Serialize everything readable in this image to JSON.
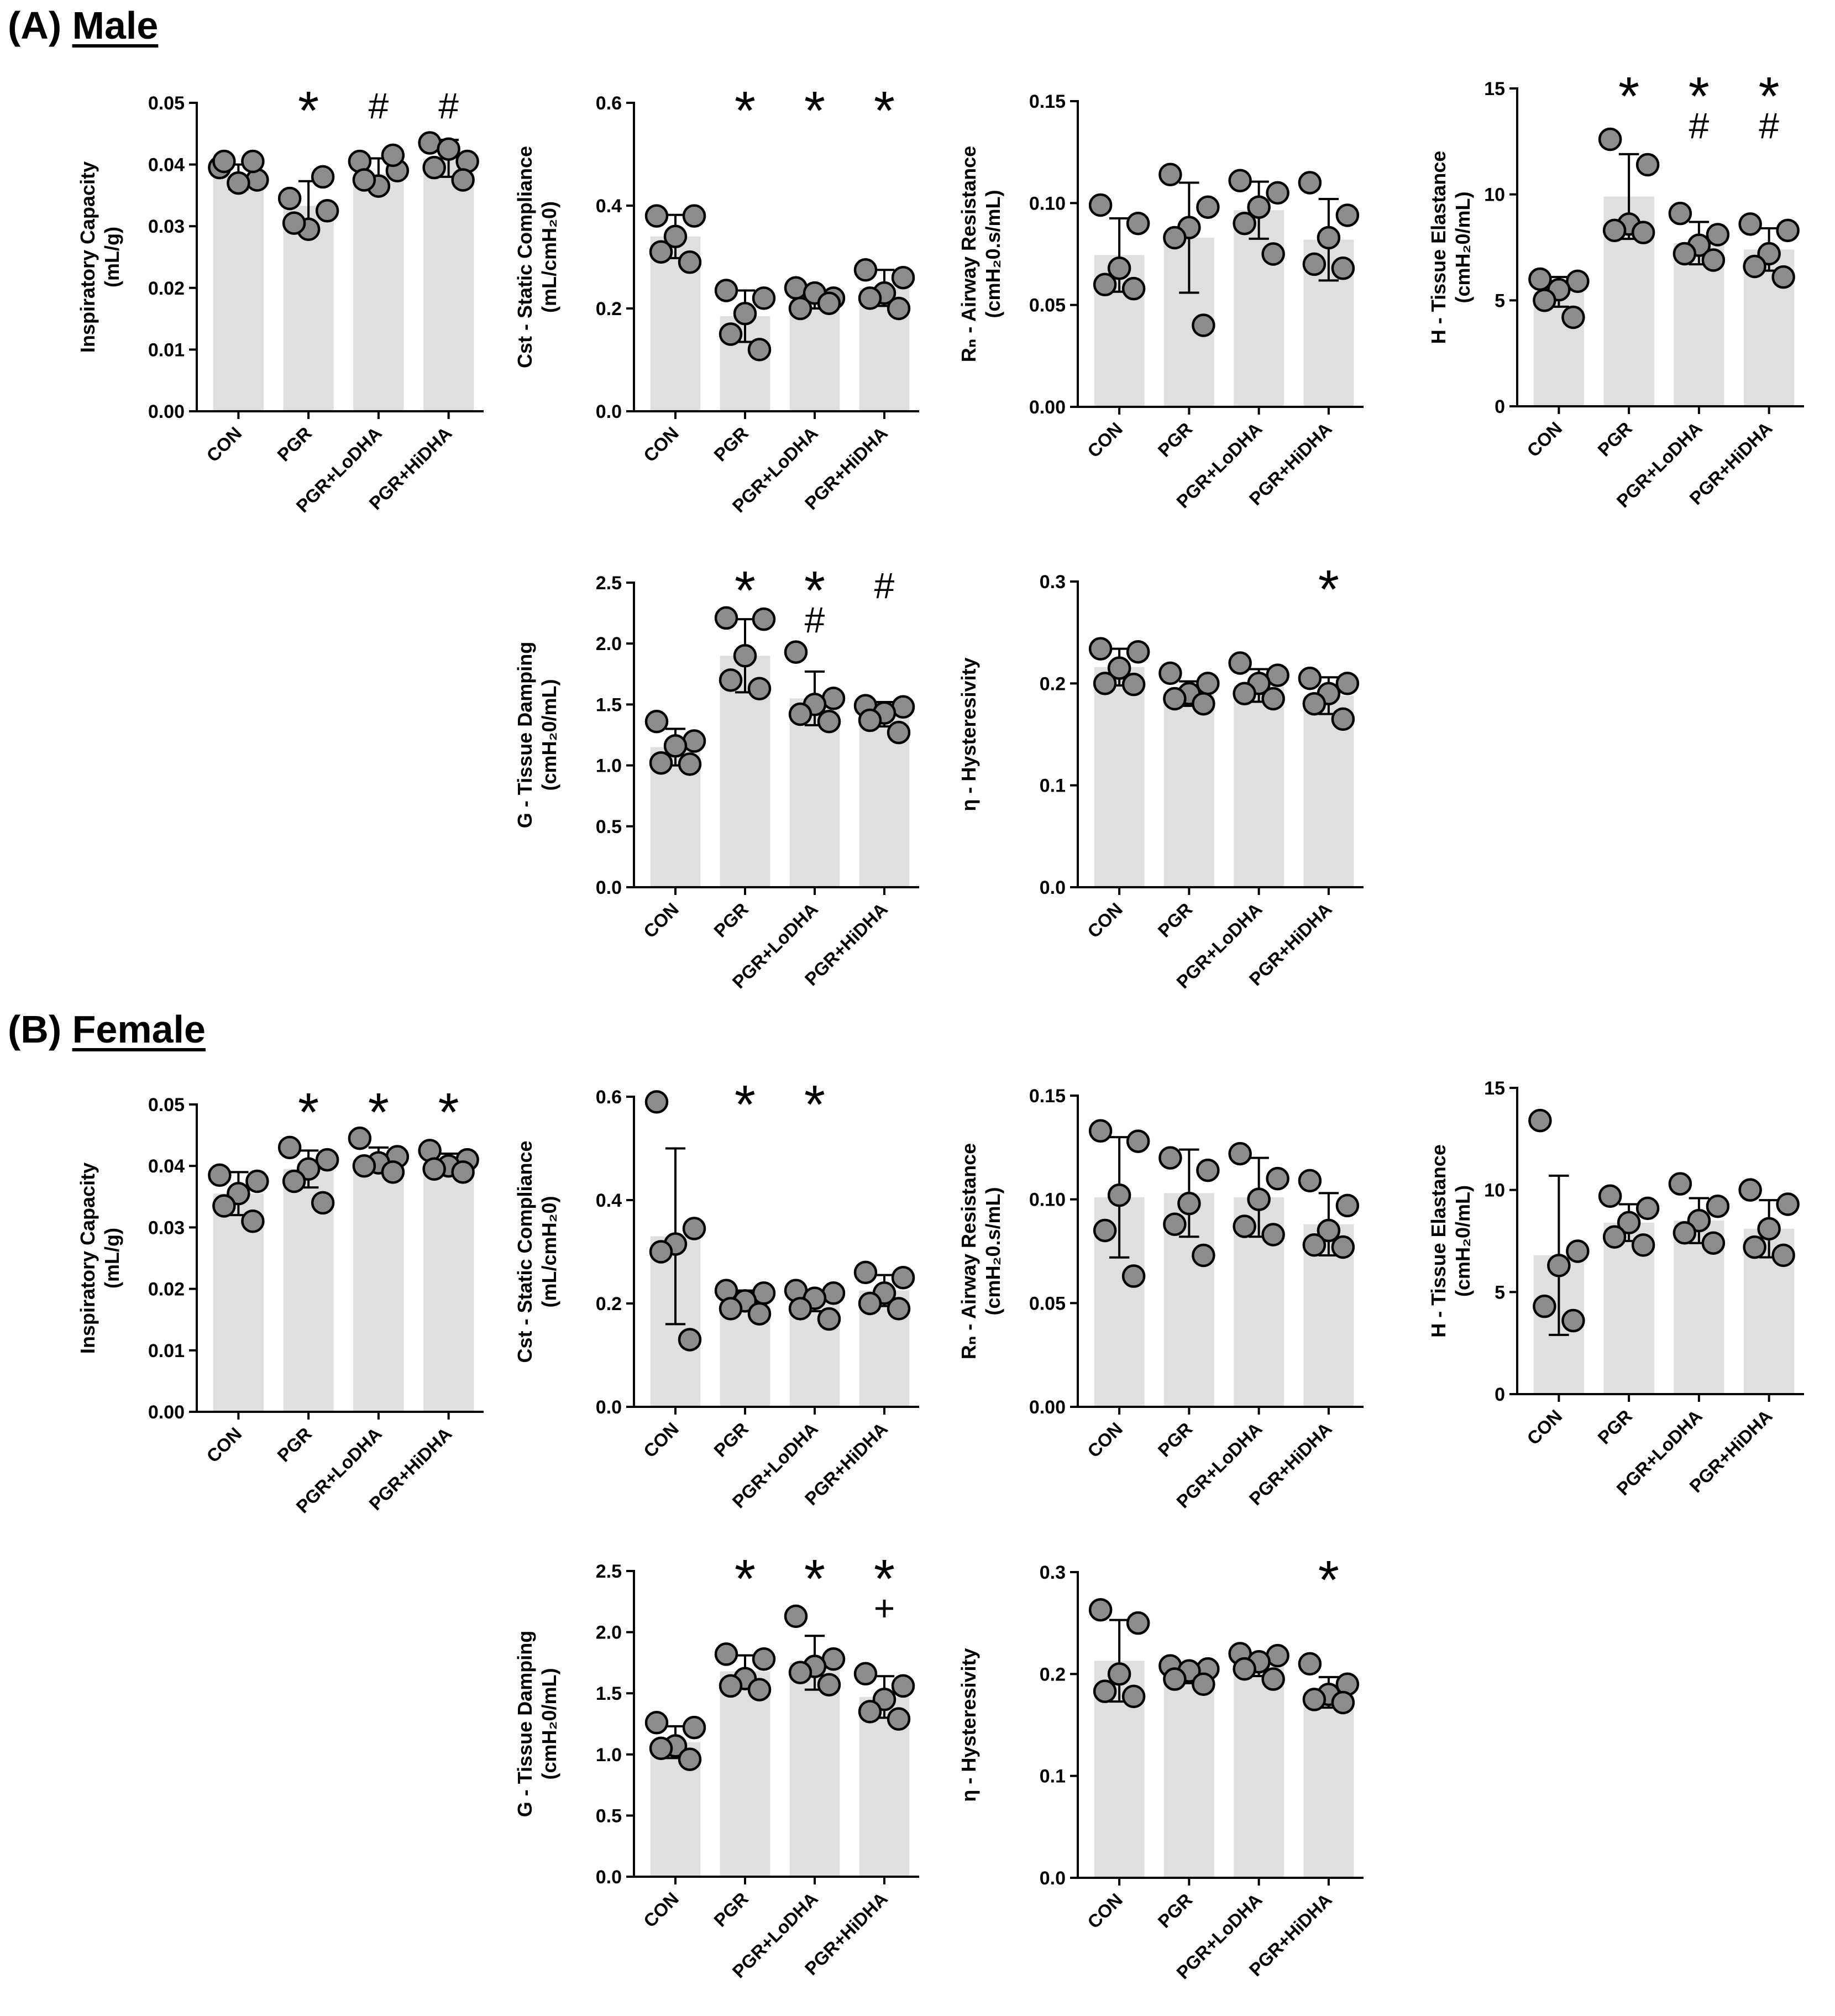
{
  "sections": [
    {
      "label": "(A)",
      "name": "Male"
    },
    {
      "label": "(B)",
      "name": "Female"
    }
  ],
  "chart_data": [
    {
      "id": "male-ic",
      "section": "Male",
      "type": "bar",
      "title": "",
      "ylabel_main": "Inspiratory Capacity",
      "ylabel_sub": "(mL/g)",
      "ylim": [
        0,
        0.05
      ],
      "ticks": [
        "0.00",
        "0.01",
        "0.02",
        "0.03",
        "0.04",
        "0.05"
      ],
      "categories": [
        "CON",
        "PGR",
        "PGR+LoDHA",
        "PGR+HiDHA"
      ],
      "values": [
        0.038,
        0.0333,
        0.0385,
        0.041
      ],
      "sd": [
        0.002,
        0.004,
        0.0025,
        0.003
      ],
      "points": [
        [
          0.0395,
          0.0375,
          0.037,
          0.0405,
          0.0405
        ],
        [
          0.0345,
          0.0325,
          0.0295,
          0.0305,
          0.038
        ],
        [
          0.0405,
          0.039,
          0.0365,
          0.0375,
          0.0415
        ],
        [
          0.0435,
          0.0405,
          0.0425,
          0.0395,
          0.0375
        ]
      ],
      "sig": [
        [],
        [
          "*"
        ],
        [
          "#"
        ],
        [
          "#"
        ]
      ]
    },
    {
      "id": "male-cst",
      "section": "Male",
      "type": "bar",
      "title": "",
      "ylabel_main": "Cst - Static Compliance",
      "ylabel_sub": "(mL/cmH₂0)",
      "ylim": [
        0,
        0.6
      ],
      "ticks": [
        "0.0",
        "0.2",
        "0.4",
        "0.6"
      ],
      "categories": [
        "CON",
        "PGR",
        "PGR+LoDHA",
        "PGR+HiDHA"
      ],
      "values": [
        0.34,
        0.185,
        0.22,
        0.24
      ],
      "sd": [
        0.042,
        0.05,
        0.02,
        0.035
      ],
      "points": [
        [
          0.38,
          0.38,
          0.34,
          0.31,
          0.29
        ],
        [
          0.235,
          0.22,
          0.19,
          0.15,
          0.12
        ],
        [
          0.24,
          0.22,
          0.23,
          0.2,
          0.21
        ],
        [
          0.275,
          0.26,
          0.23,
          0.22,
          0.2
        ]
      ],
      "sig": [
        [],
        [
          "*"
        ],
        [
          "*"
        ],
        [
          "*"
        ]
      ]
    },
    {
      "id": "male-rn",
      "section": "Male",
      "type": "bar",
      "title": "",
      "ylabel_main": "Rₙ - Airway Resistance",
      "ylabel_sub": "(cmH₂0.s/mL)",
      "ylim": [
        0,
        0.15
      ],
      "ticks": [
        "0.00",
        "0.05",
        "0.10",
        "0.15"
      ],
      "categories": [
        "CON",
        "PGR",
        "PGR+LoDHA",
        "PGR+HiDHA"
      ],
      "values": [
        0.0745,
        0.083,
        0.0965,
        0.082
      ],
      "sd": [
        0.018,
        0.027,
        0.014,
        0.02
      ],
      "points": [
        [
          0.099,
          0.09,
          0.068,
          0.06,
          0.058
        ],
        [
          0.114,
          0.098,
          0.088,
          0.083,
          0.04
        ],
        [
          0.111,
          0.105,
          0.098,
          0.09,
          0.075
        ],
        [
          0.11,
          0.094,
          0.083,
          0.07,
          0.068
        ]
      ],
      "sig": [
        [],
        [],
        [],
        []
      ]
    },
    {
      "id": "male-h",
      "section": "Male",
      "type": "bar",
      "title": "",
      "ylabel_main": "H - Tissue Elastance",
      "ylabel_sub": "(cmH₂0/mL)",
      "ylim": [
        0,
        15
      ],
      "ticks": [
        "0",
        "5",
        "10",
        "15"
      ],
      "categories": [
        "CON",
        "PGR",
        "PGR+LoDHA",
        "PGR+HiDHA"
      ],
      "values": [
        5.4,
        9.9,
        7.7,
        7.4
      ],
      "sd": [
        0.7,
        2.0,
        1.0,
        1.0
      ],
      "points": [
        [
          6.0,
          5.9,
          5.5,
          5.0,
          4.2
        ],
        [
          12.6,
          11.4,
          8.6,
          8.3,
          8.2
        ],
        [
          9.1,
          8.1,
          7.6,
          7.2,
          6.9
        ],
        [
          8.6,
          8.3,
          7.2,
          6.6,
          6.1
        ]
      ],
      "sig": [
        [],
        [
          "*"
        ],
        [
          "*",
          "#"
        ],
        [
          "*",
          "#"
        ]
      ]
    },
    {
      "id": "male-g",
      "section": "Male",
      "type": "bar",
      "title": "",
      "ylabel_main": "G - Tissue Damping",
      "ylabel_sub": "(cmH₂0/mL)",
      "ylim": [
        0,
        2.5
      ],
      "ticks": [
        "0.0",
        "0.5",
        "1.0",
        "1.5",
        "2.0",
        "2.5"
      ],
      "categories": [
        "CON",
        "PGR",
        "PGR+LoDHA",
        "PGR+HiDHA"
      ],
      "values": [
        1.15,
        1.9,
        1.55,
        1.42
      ],
      "sd": [
        0.15,
        0.3,
        0.22,
        0.1
      ],
      "points": [
        [
          1.36,
          1.2,
          1.16,
          1.02,
          1.01
        ],
        [
          2.21,
          2.2,
          1.9,
          1.7,
          1.63
        ],
        [
          1.93,
          1.55,
          1.5,
          1.42,
          1.36
        ],
        [
          1.49,
          1.48,
          1.43,
          1.37,
          1.27
        ]
      ],
      "sig": [
        [],
        [
          "*"
        ],
        [
          "*",
          "#"
        ],
        [
          "#"
        ]
      ]
    },
    {
      "id": "male-eta",
      "section": "Male",
      "type": "bar",
      "title": "",
      "ylabel_main": "η - Hysteresivity",
      "ylabel_sub": "",
      "ylim": [
        0,
        0.3
      ],
      "ticks": [
        "0.0",
        "0.1",
        "0.2",
        "0.3"
      ],
      "categories": [
        "CON",
        "PGR",
        "PGR+LoDHA",
        "PGR+HiDHA"
      ],
      "values": [
        0.216,
        0.19,
        0.198,
        0.188
      ],
      "sd": [
        0.018,
        0.012,
        0.016,
        0.018
      ],
      "points": [
        [
          0.234,
          0.231,
          0.215,
          0.2,
          0.199
        ],
        [
          0.21,
          0.2,
          0.19,
          0.185,
          0.18
        ],
        [
          0.22,
          0.208,
          0.2,
          0.19,
          0.185
        ],
        [
          0.205,
          0.2,
          0.19,
          0.18,
          0.165
        ]
      ],
      "sig": [
        [],
        [],
        [],
        [
          "*"
        ]
      ]
    },
    {
      "id": "female-ic",
      "section": "Female",
      "type": "bar",
      "title": "",
      "ylabel_main": "Inspiratory Capacity",
      "ylabel_sub": "(mL/g)",
      "ylim": [
        0,
        0.05
      ],
      "ticks": [
        "0.00",
        "0.01",
        "0.02",
        "0.03",
        "0.04",
        "0.05"
      ],
      "categories": [
        "CON",
        "PGR",
        "PGR+LoDHA",
        "PGR+HiDHA"
      ],
      "values": [
        0.0355,
        0.0395,
        0.041,
        0.0405
      ],
      "sd": [
        0.0035,
        0.003,
        0.002,
        0.0015
      ],
      "points": [
        [
          0.0385,
          0.0375,
          0.0355,
          0.0335,
          0.031
        ],
        [
          0.043,
          0.041,
          0.0395,
          0.0375,
          0.034
        ],
        [
          0.0445,
          0.0415,
          0.0405,
          0.04,
          0.039
        ],
        [
          0.0425,
          0.041,
          0.04,
          0.0395,
          0.039
        ]
      ],
      "sig": [
        [],
        [
          "*"
        ],
        [
          "*"
        ],
        [
          "*"
        ]
      ]
    },
    {
      "id": "female-cst",
      "section": "Female",
      "type": "bar",
      "title": "",
      "ylabel_main": "Cst - Static Compliance",
      "ylabel_sub": "(mL/cmH₂0)",
      "ylim": [
        0,
        0.6
      ],
      "ticks": [
        "0.0",
        "0.2",
        "0.4",
        "0.6"
      ],
      "categories": [
        "CON",
        "PGR",
        "PGR+LoDHA",
        "PGR+HiDHA"
      ],
      "values": [
        0.33,
        0.205,
        0.205,
        0.225
      ],
      "sd": [
        0.17,
        0.02,
        0.02,
        0.03
      ],
      "points": [
        [
          0.59,
          0.345,
          0.315,
          0.3,
          0.13
        ],
        [
          0.225,
          0.22,
          0.205,
          0.19,
          0.18
        ],
        [
          0.225,
          0.22,
          0.21,
          0.19,
          0.17
        ],
        [
          0.26,
          0.25,
          0.22,
          0.2,
          0.19
        ]
      ],
      "sig": [
        [],
        [
          "*"
        ],
        [
          "*"
        ],
        []
      ]
    },
    {
      "id": "female-rn",
      "section": "Female",
      "type": "bar",
      "title": "",
      "ylabel_main": "Rₙ - Airway Resistance",
      "ylabel_sub": "(cmH₂0.s/mL)",
      "ylim": [
        0,
        0.15
      ],
      "ticks": [
        "0.00",
        "0.05",
        "0.10",
        "0.15"
      ],
      "categories": [
        "CON",
        "PGR",
        "PGR+LoDHA",
        "PGR+HiDHA"
      ],
      "values": [
        0.101,
        0.103,
        0.101,
        0.088
      ],
      "sd": [
        0.029,
        0.021,
        0.019,
        0.015
      ],
      "points": [
        [
          0.133,
          0.128,
          0.102,
          0.085,
          0.063
        ],
        [
          0.12,
          0.114,
          0.098,
          0.088,
          0.073
        ],
        [
          0.122,
          0.11,
          0.1,
          0.087,
          0.083
        ],
        [
          0.109,
          0.097,
          0.085,
          0.078,
          0.077
        ]
      ],
      "sig": [
        [],
        [],
        [],
        []
      ]
    },
    {
      "id": "female-h",
      "section": "Female",
      "type": "bar",
      "title": "",
      "ylabel_main": "H - Tissue Elastance",
      "ylabel_sub": "(cmH₂0/mL)",
      "ylim": [
        0,
        15
      ],
      "ticks": [
        "0",
        "5",
        "10",
        "15"
      ],
      "categories": [
        "CON",
        "PGR",
        "PGR+LoDHA",
        "PGR+HiDHA"
      ],
      "values": [
        6.8,
        8.4,
        8.5,
        8.1
      ],
      "sd": [
        3.9,
        0.9,
        1.1,
        1.4
      ],
      "points": [
        [
          13.4,
          7.0,
          6.3,
          4.3,
          3.6
        ],
        [
          9.7,
          9.1,
          8.4,
          7.7,
          7.3
        ],
        [
          10.3,
          9.2,
          8.5,
          7.9,
          7.4
        ],
        [
          10.0,
          9.3,
          8.1,
          7.2,
          6.8
        ]
      ],
      "sig": [
        [],
        [],
        [],
        []
      ]
    },
    {
      "id": "female-g",
      "section": "Female",
      "type": "bar",
      "title": "",
      "ylabel_main": "G - Tissue Damping",
      "ylabel_sub": "(cmH₂0/mL)",
      "ylim": [
        0,
        2.5
      ],
      "ticks": [
        "0.0",
        "0.5",
        "1.0",
        "1.5",
        "2.0",
        "2.5"
      ],
      "categories": [
        "CON",
        "PGR",
        "PGR+LoDHA",
        "PGR+HiDHA"
      ],
      "values": [
        1.1,
        1.68,
        1.75,
        1.47
      ],
      "sd": [
        0.13,
        0.13,
        0.22,
        0.17
      ],
      "points": [
        [
          1.26,
          1.22,
          1.07,
          1.05,
          0.96
        ],
        [
          1.82,
          1.78,
          1.62,
          1.56,
          1.53
        ],
        [
          2.13,
          1.78,
          1.72,
          1.67,
          1.57
        ],
        [
          1.66,
          1.56,
          1.45,
          1.35,
          1.29
        ]
      ],
      "sig": [
        [],
        [
          "*"
        ],
        [
          "*"
        ],
        [
          "*",
          "+"
        ]
      ]
    },
    {
      "id": "female-eta",
      "section": "Female",
      "type": "bar",
      "title": "",
      "ylabel_main": "η - Hysteresivity",
      "ylabel_sub": "",
      "ylim": [
        0,
        0.3
      ],
      "ticks": [
        "0.0",
        "0.1",
        "0.2",
        "0.3"
      ],
      "categories": [
        "CON",
        "PGR",
        "PGR+LoDHA",
        "PGR+HiDHA"
      ],
      "values": [
        0.213,
        0.199,
        0.208,
        0.182
      ],
      "sd": [
        0.04,
        0.008,
        0.01,
        0.015
      ],
      "points": [
        [
          0.263,
          0.25,
          0.2,
          0.183,
          0.178
        ],
        [
          0.208,
          0.205,
          0.203,
          0.195,
          0.19
        ],
        [
          0.22,
          0.218,
          0.212,
          0.205,
          0.195
        ],
        [
          0.21,
          0.19,
          0.18,
          0.175,
          0.172
        ]
      ],
      "sig": [
        [],
        [],
        [],
        [
          "*"
        ]
      ]
    }
  ],
  "colors": {
    "bar": "#dfdfdf",
    "point_fill": "#8c8c8c",
    "stroke": "#000000"
  }
}
